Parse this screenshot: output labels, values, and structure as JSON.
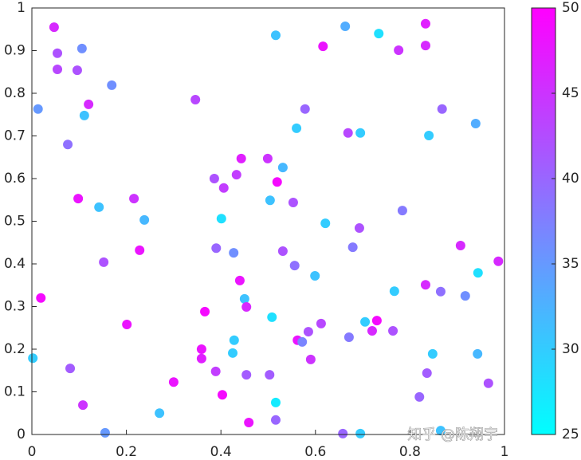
{
  "chart_data": {
    "type": "scatter",
    "x": [
      0.047,
      0.054,
      0.054,
      0.106,
      0.096,
      0.169,
      0.013,
      0.12,
      0.111,
      0.076,
      0.346,
      0.516,
      0.663,
      0.734,
      0.616,
      0.776,
      0.833,
      0.833,
      0.578,
      0.868,
      0.56,
      0.669,
      0.695,
      0.84,
      0.939,
      0.443,
      0.499,
      0.531,
      0.386,
      0.433,
      0.406,
      0.519,
      0.098,
      0.216,
      0.142,
      0.238,
      0.401,
      0.504,
      0.553,
      0.621,
      0.784,
      0.693,
      0.39,
      0.427,
      0.531,
      0.152,
      0.228,
      0.556,
      0.599,
      0.679,
      0.907,
      0.987,
      0.944,
      0.833,
      0.865,
      0.917,
      0.019,
      0.44,
      0.45,
      0.366,
      0.454,
      0.767,
      0.201,
      0.508,
      0.612,
      0.585,
      0.705,
      0.73,
      0.72,
      0.764,
      0.428,
      0.562,
      0.572,
      0.671,
      0.848,
      0.943,
      0.359,
      0.359,
      0.425,
      0.59,
      0.002,
      0.081,
      0.389,
      0.454,
      0.503,
      0.836,
      0.966,
      0.3,
      0.403,
      0.82,
      0.108,
      0.516,
      0.27,
      0.459,
      0.516,
      0.155,
      0.658,
      0.695,
      0.865
    ],
    "y": [
      0.955,
      0.894,
      0.856,
      0.905,
      0.854,
      0.819,
      0.763,
      0.774,
      0.748,
      0.68,
      0.785,
      0.936,
      0.957,
      0.94,
      0.91,
      0.901,
      0.963,
      0.912,
      0.763,
      0.763,
      0.718,
      0.707,
      0.707,
      0.701,
      0.729,
      0.647,
      0.647,
      0.626,
      0.6,
      0.609,
      0.578,
      0.592,
      0.553,
      0.553,
      0.533,
      0.503,
      0.506,
      0.549,
      0.544,
      0.495,
      0.525,
      0.484,
      0.437,
      0.426,
      0.43,
      0.404,
      0.432,
      0.396,
      0.372,
      0.439,
      0.443,
      0.406,
      0.379,
      0.351,
      0.335,
      0.325,
      0.32,
      0.361,
      0.318,
      0.288,
      0.299,
      0.336,
      0.258,
      0.275,
      0.26,
      0.241,
      0.264,
      0.267,
      0.243,
      0.243,
      0.221,
      0.221,
      0.217,
      0.228,
      0.189,
      0.189,
      0.2,
      0.178,
      0.191,
      0.176,
      0.179,
      0.155,
      0.148,
      0.14,
      0.14,
      0.144,
      0.12,
      0.123,
      0.093,
      0.088,
      0.069,
      0.075,
      0.05,
      0.028,
      0.034,
      0.004,
      0.002,
      0.002,
      0.009
    ],
    "c": [
      46,
      42,
      43,
      36,
      42,
      36,
      35,
      46,
      31,
      39,
      43,
      31,
      33,
      28,
      48,
      45,
      47,
      46,
      40,
      40,
      30,
      43,
      30,
      30,
      33,
      47,
      45,
      32,
      42,
      44,
      44,
      49,
      48,
      45,
      31,
      32,
      28,
      31,
      42,
      30,
      38,
      42,
      40,
      36,
      42,
      42,
      48,
      39,
      31,
      38,
      46,
      46,
      28,
      46,
      39,
      36,
      49,
      48,
      31,
      49,
      46,
      30,
      48,
      28,
      43,
      42,
      30,
      49,
      46,
      42,
      30,
      48,
      37,
      38,
      30,
      32,
      48,
      47,
      30,
      45,
      30,
      41,
      44,
      41,
      41,
      41,
      42,
      48,
      49,
      40,
      45,
      27,
      31,
      48,
      40,
      35,
      40,
      30,
      31
    ],
    "colormap": "cool",
    "clim": [
      25,
      50
    ],
    "cticks": [
      25,
      30,
      35,
      40,
      45,
      50
    ],
    "xlim": [
      0,
      1
    ],
    "xticks": [
      0,
      0.2,
      0.4,
      0.6,
      0.8,
      1
    ],
    "ylim": [
      0,
      1
    ],
    "yticks": [
      0,
      0.1,
      0.2,
      0.3,
      0.4,
      0.5,
      0.6,
      0.7,
      0.8,
      0.9,
      1
    ],
    "watermark": "知乎 @陈翔宇"
  }
}
